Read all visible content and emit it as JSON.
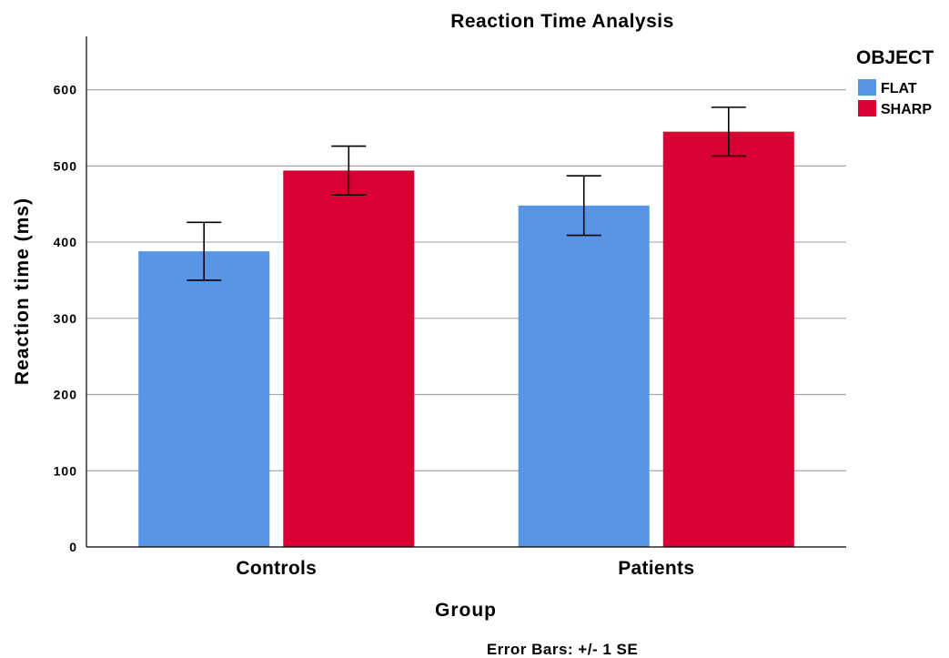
{
  "chart_data": {
    "type": "bar",
    "title": "Reaction Time Analysis",
    "xlabel": "Group",
    "ylabel": "Reaction time (ms)",
    "categories": [
      "Controls",
      "Patients"
    ],
    "ylim": [
      0,
      670
    ],
    "yticks": [
      0,
      100,
      200,
      300,
      400,
      500,
      600
    ],
    "grid": true,
    "legend": {
      "title": "OBJECT",
      "position": "top-right"
    },
    "series": [
      {
        "name": "FLAT",
        "color": "#5895e5",
        "values": [
          388,
          448
        ],
        "error": [
          38,
          39
        ]
      },
      {
        "name": "SHARP",
        "color": "#d60032",
        "values": [
          494,
          545
        ],
        "error": [
          32,
          32
        ]
      }
    ],
    "note": "Error Bars: +/- 1 SE"
  }
}
